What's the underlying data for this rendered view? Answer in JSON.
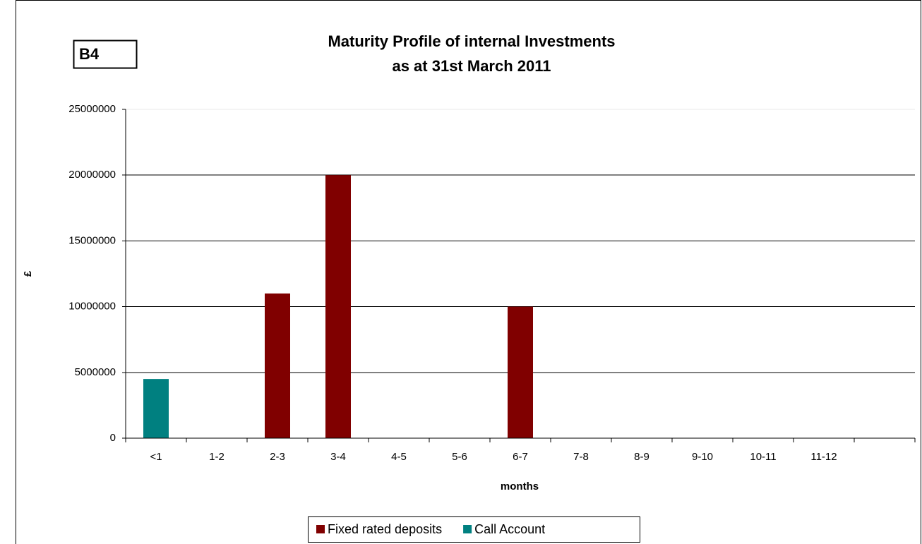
{
  "chart_data": {
    "type": "bar",
    "stacked": true,
    "title": [
      "Maturity Profile of internal Investments",
      "as at 31st March 2011"
    ],
    "annotation": "B4",
    "x_label": "months",
    "y_label": "£",
    "categories": [
      "<1",
      "1-2",
      "2-3",
      "3-4",
      "4-5",
      "5-6",
      "6-7",
      "7-8",
      "8-9",
      "9-10",
      "10-11",
      "11-12",
      null
    ],
    "series": [
      {
        "name": "Fixed rated deposits",
        "color": "#800000",
        "values": [
          0,
          0,
          11000000,
          20000000,
          0,
          0,
          10000000,
          0,
          0,
          0,
          0,
          0,
          null
        ]
      },
      {
        "name": "Call Account",
        "color": "#008080",
        "values": [
          4500000,
          0,
          0,
          0,
          0,
          0,
          0,
          0,
          0,
          0,
          0,
          0,
          null
        ]
      }
    ],
    "ylim": [
      0,
      25000000
    ],
    "yticks": [
      0,
      5000000,
      10000000,
      15000000,
      20000000,
      25000000
    ],
    "grid": true,
    "legend": "bottom"
  }
}
